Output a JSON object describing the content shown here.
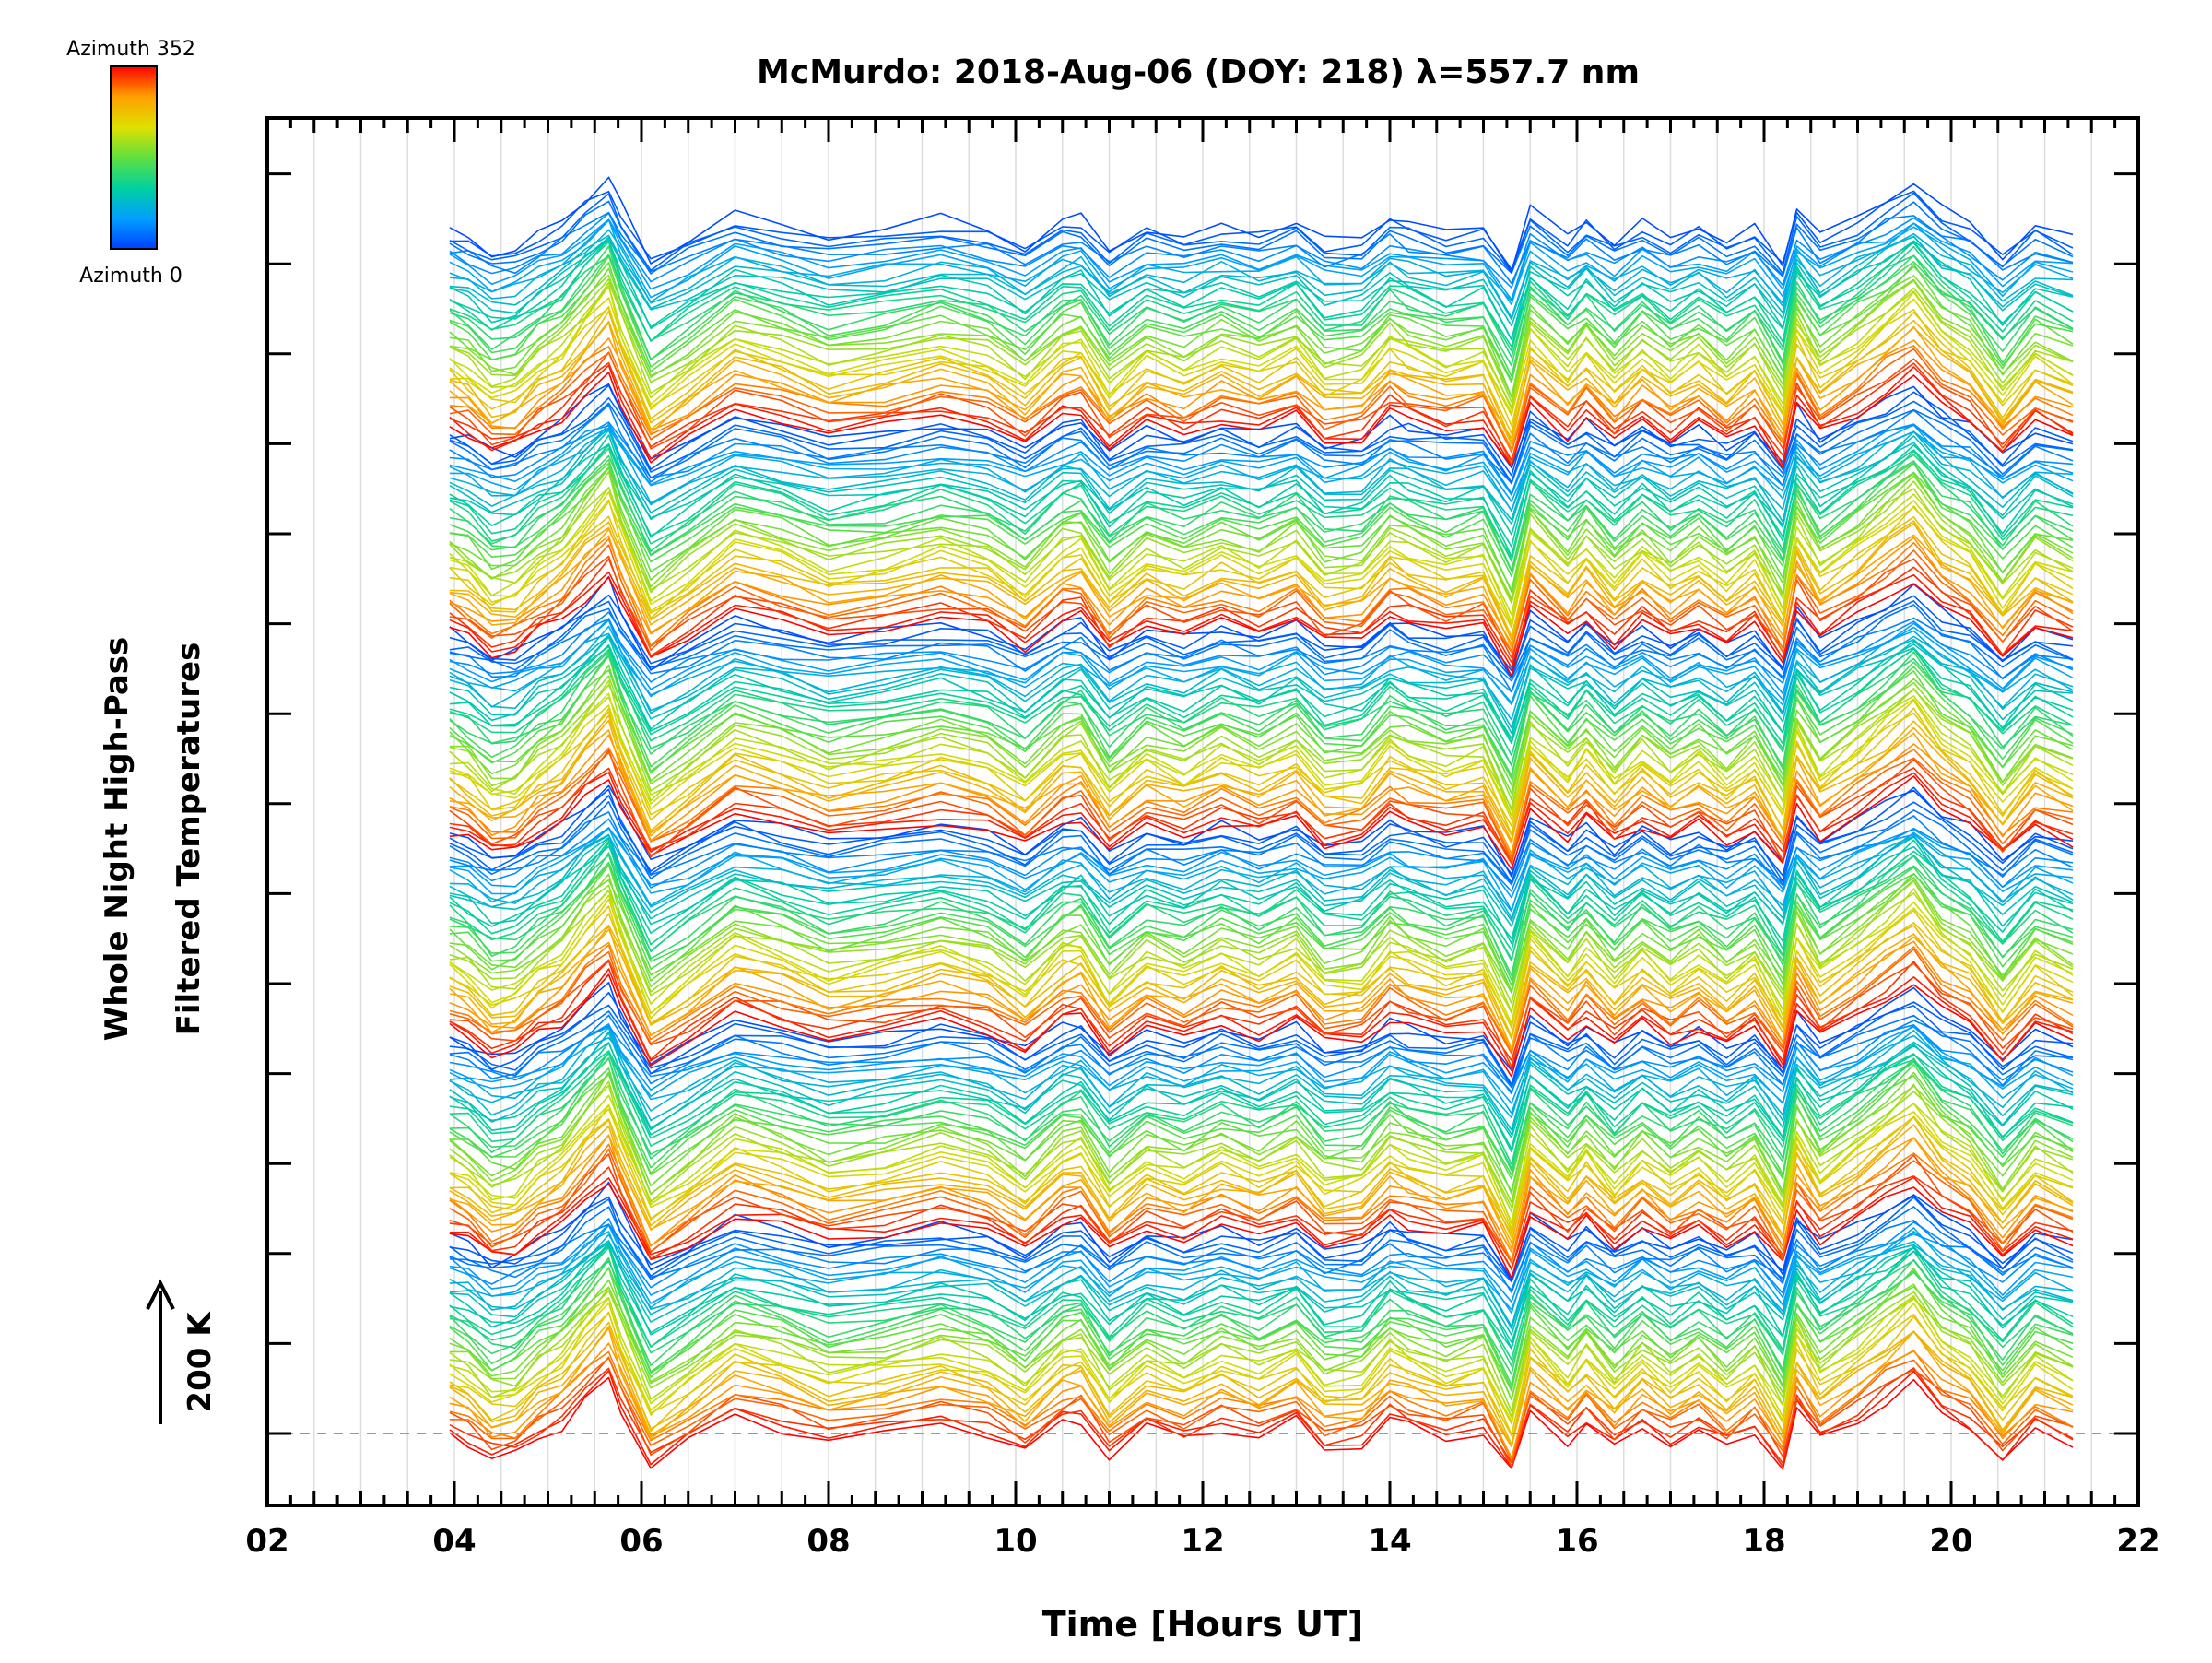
{
  "chart_data": {
    "type": "line",
    "title": "McMurdo: 2018-Aug-06 (DOY: 218) λ=557.7 nm",
    "xlabel": "Time [Hours UT]",
    "ylabel_line1": "Whole Night High-Pass",
    "ylabel_line2": "Filtered Temperatures",
    "scale_label": "200 K",
    "xlim": [
      2,
      22
    ],
    "x_ticks": [
      "02",
      "04",
      "06",
      "08",
      "10",
      "12",
      "14",
      "16",
      "18",
      "20",
      "22"
    ],
    "x_tick_values": [
      2,
      4,
      6,
      8,
      10,
      12,
      14,
      16,
      18,
      20,
      22
    ],
    "y_major_tick_count": 15,
    "grid": "vertical light lines every 0.5 h",
    "colorbar": {
      "top_label": "Azimuth 352",
      "bottom_label": "Azimuth 0",
      "colors": [
        "#ff0000",
        "#ffa000",
        "#e0e000",
        "#60e040",
        "#00d0a0",
        "#00a0ff",
        "#0040ff"
      ]
    },
    "series_description": "Stacked traces of high-pass filtered temperatures, one per azimuth (0 to 352 deg), repeated in 6 stacked groups",
    "times": [
      3.95,
      4.15,
      4.4,
      4.65,
      4.9,
      5.15,
      5.4,
      5.65,
      5.78,
      6.1,
      6.5,
      7.0,
      7.5,
      8.0,
      8.6,
      9.2,
      9.7,
      10.1,
      10.5,
      10.7,
      11.0,
      11.4,
      11.8,
      12.2,
      12.6,
      13.0,
      13.3,
      13.7,
      14.0,
      14.2,
      14.6,
      15.0,
      15.3,
      15.5,
      15.9,
      16.1,
      16.4,
      16.7,
      17.0,
      17.3,
      17.6,
      17.9,
      18.2,
      18.35,
      18.6,
      19.0,
      19.3,
      19.6,
      19.9,
      20.2,
      20.55,
      20.9,
      21.3
    ],
    "pattern_K": [
      0,
      -20,
      -70,
      -60,
      -10,
      25,
      90,
      150,
      70,
      -90,
      -30,
      50,
      20,
      -20,
      0,
      30,
      5,
      -50,
      30,
      40,
      -60,
      10,
      -20,
      20,
      -10,
      30,
      -40,
      -30,
      40,
      20,
      -10,
      10,
      -120,
      60,
      -20,
      30,
      -40,
      20,
      -30,
      10,
      -40,
      10,
      -100,
      70,
      -20,
      40,
      90,
      140,
      60,
      20,
      -80,
      10,
      -30
    ],
    "slice_values": [
      {
        "group": 1,
        "azimuth_deg": 0,
        "x": [
          4,
          5.7,
          6.1,
          10.5,
          14.1,
          18.2,
          19.6,
          21.3
        ],
        "y_K": [
          0,
          150,
          -90,
          30,
          40,
          -100,
          140,
          -30
        ]
      },
      {
        "group": 1,
        "azimuth_deg": 176,
        "x": [
          4,
          5.7,
          6.1,
          10.5,
          14.1,
          18.2,
          19.6,
          21.3
        ],
        "y_K": [
          0,
          90,
          -40,
          20,
          30,
          -60,
          90,
          -20
        ]
      },
      {
        "group": 1,
        "azimuth_deg": 352,
        "x": [
          4,
          5.7,
          6.1,
          10.5,
          14.1,
          18.2,
          19.6,
          21.3
        ],
        "y_K": [
          0,
          120,
          -70,
          25,
          35,
          -80,
          110,
          -25
        ]
      }
    ]
  }
}
